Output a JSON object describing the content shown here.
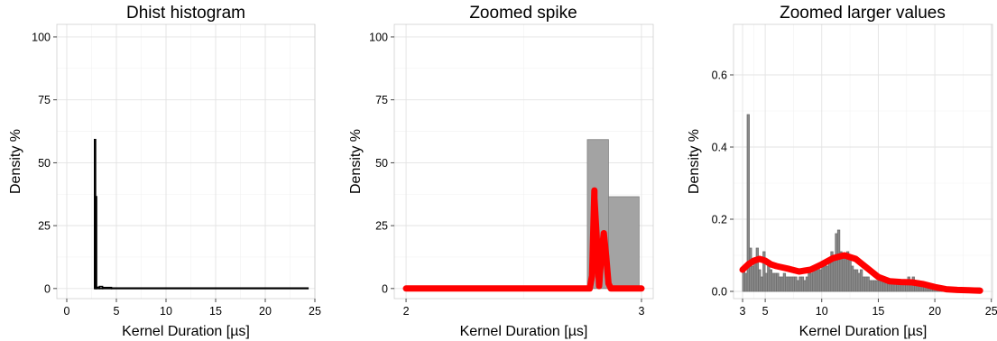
{
  "chart_data": [
    {
      "type": "bar",
      "title": "Dhist histogram",
      "xlabel": "Kernel Duration [µs]",
      "ylabel": "Density %",
      "xlim": [
        -1,
        25
      ],
      "ylim": [
        -4,
        105
      ],
      "x_ticks": [
        0,
        5,
        10,
        15,
        20,
        25
      ],
      "y_ticks": [
        0,
        25,
        50,
        75,
        100
      ],
      "grid": true,
      "series": [
        {
          "bars": [
            {
              "x0": 2.8,
              "x1": 2.9,
              "y": 59.2
            },
            {
              "x0": 2.9,
              "x1": 3.0,
              "y": 36.5
            },
            {
              "x0": 3.0,
              "x1": 3.3,
              "y": 0.5
            },
            {
              "x0": 3.3,
              "x1": 3.6,
              "y": 0.8
            },
            {
              "x0": 3.6,
              "x1": 4.5,
              "y": 0.4
            },
            {
              "x0": 4.5,
              "x1": 24.3,
              "y": 0.2
            }
          ]
        }
      ],
      "colors": {
        "bar_stroke": "#000000"
      }
    },
    {
      "type": "bar",
      "title": "Zoomed spike",
      "xlabel": "Kernel Duration [µs]",
      "ylabel": "Density %",
      "xlim": [
        1.95,
        3.05
      ],
      "ylim": [
        -4,
        105
      ],
      "x_ticks": [
        2,
        3
      ],
      "y_ticks": [
        0,
        25,
        50,
        75,
        100
      ],
      "grid": true,
      "bars": [
        {
          "x0": 2.77,
          "x1": 2.86,
          "y": 59.2
        },
        {
          "x0": 2.86,
          "x1": 2.99,
          "y": 36.5
        }
      ],
      "density_curve": {
        "x": [
          2.0,
          2.78,
          2.79,
          2.8,
          2.8,
          2.81,
          2.82,
          2.83,
          2.84,
          2.85,
          2.86,
          2.87,
          3.0
        ],
        "y": [
          0,
          0,
          5,
          39,
          36,
          20,
          1,
          14,
          22,
          13,
          2,
          0,
          0
        ]
      },
      "colors": {
        "bar_fill": "#a3a3a3",
        "bar_stroke": "#7f7f7f",
        "curve": "#ff0000"
      }
    },
    {
      "type": "bar",
      "title": "Zoomed larger values",
      "xlabel": "Kernel Duration [µs]",
      "ylabel": "Density %",
      "xlim": [
        2.2,
        25.1
      ],
      "ylim": [
        -0.02,
        0.74
      ],
      "x_ticks": [
        3,
        5,
        10,
        15,
        20,
        25
      ],
      "y_ticks": [
        0.0,
        0.2,
        0.4,
        0.6
      ],
      "grid": true,
      "bars_x_start": 3.0,
      "bars_width": 0.2,
      "bars_values": [
        0.06,
        0.05,
        0.49,
        0.12,
        0.07,
        0.08,
        0.12,
        0.06,
        0.04,
        0.11,
        0.05,
        0.07,
        0.06,
        0.05,
        0.05,
        0.05,
        0.04,
        0.04,
        0.05,
        0.04,
        0.04,
        0.04,
        0.04,
        0.04,
        0.03,
        0.04,
        0.04,
        0.03,
        0.04,
        0.05,
        0.05,
        0.06,
        0.07,
        0.07,
        0.06,
        0.08,
        0.08,
        0.07,
        0.09,
        0.11,
        0.1,
        0.16,
        0.17,
        0.11,
        0.1,
        0.1,
        0.11,
        0.09,
        0.07,
        0.06,
        0.06,
        0.05,
        0.06,
        0.04,
        0.04,
        0.04,
        0.03,
        0.03,
        0.03,
        0.03,
        0.03,
        0.04,
        0.03,
        0.03,
        0.03,
        0.03,
        0.03,
        0.03,
        0.03,
        0.03,
        0.03,
        0.03,
        0.03,
        0.04,
        0.03,
        0.04,
        0.03,
        0.03,
        0.02,
        0.02,
        0.02,
        0.02,
        0.02,
        0.02,
        0.02,
        0.01,
        0.01,
        0.01,
        0.01,
        0.01,
        0.01,
        0.01,
        0.01,
        0.01,
        0.01,
        0.01,
        0.01,
        0.01,
        0.01,
        0.01,
        0.01,
        0.01,
        0.01,
        0.01,
        0.01
      ],
      "density_curve": {
        "x": [
          3,
          3.5,
          4,
          4.5,
          5,
          5.5,
          6,
          7,
          8,
          9,
          10,
          11,
          12,
          13,
          14,
          15,
          16,
          17,
          18,
          19,
          20,
          21,
          22,
          23,
          24
        ],
        "y": [
          0.06,
          0.075,
          0.085,
          0.09,
          0.085,
          0.075,
          0.07,
          0.063,
          0.055,
          0.06,
          0.075,
          0.092,
          0.1,
          0.09,
          0.065,
          0.04,
          0.028,
          0.026,
          0.025,
          0.02,
          0.012,
          0.006,
          0.004,
          0.003,
          0.002
        ]
      },
      "colors": {
        "bar_fill": "#8a8a8a",
        "bar_stroke": "#6e6e6e",
        "curve": "#ff0000"
      }
    }
  ]
}
